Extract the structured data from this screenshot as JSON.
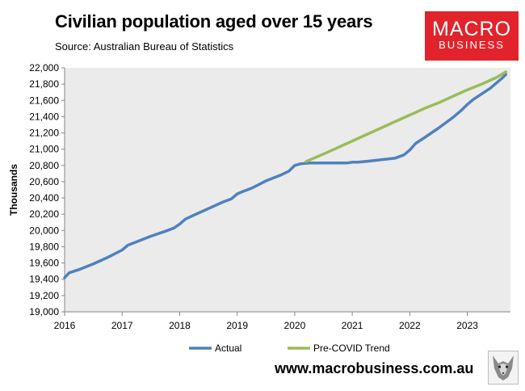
{
  "header": {
    "title": "Civilian population aged over 15 years",
    "source": "Source: Australian Bureau of Statistics"
  },
  "brand": {
    "logo_line1": "MACRO",
    "logo_line2": "BUSINESS",
    "website": "www.macrobusiness.com.au",
    "color": "#e3232b"
  },
  "chart_data": {
    "type": "line",
    "title": "Civilian population aged over 15 years",
    "xlabel": "",
    "ylabel": "Thousands",
    "ylim": [
      19000,
      22000
    ],
    "xlim": [
      2016.0,
      2023.75
    ],
    "y_ticks": [
      19000,
      19200,
      19400,
      19600,
      19800,
      20000,
      20200,
      20400,
      20600,
      20800,
      21000,
      21200,
      21400,
      21600,
      21800,
      22000
    ],
    "y_tick_labels": [
      "19,000",
      "19,200",
      "19,400",
      "19,600",
      "19,800",
      "20,000",
      "20,200",
      "20,400",
      "20,600",
      "20,800",
      "21,000",
      "21,200",
      "21,400",
      "21,600",
      "21,800",
      "22,000"
    ],
    "x_ticks": [
      2016,
      2017,
      2018,
      2019,
      2020,
      2021,
      2022,
      2023
    ],
    "x_tick_labels": [
      "2016",
      "2017",
      "2018",
      "2019",
      "2020",
      "2021",
      "2022",
      "2023"
    ],
    "grid": false,
    "legend_position": "bottom",
    "series": [
      {
        "name": "Actual",
        "color": "#4f81bd",
        "x": [
          2016.0,
          2016.08,
          2016.25,
          2016.5,
          2016.75,
          2017.0,
          2017.1,
          2017.25,
          2017.5,
          2017.75,
          2017.9,
          2018.0,
          2018.1,
          2018.25,
          2018.5,
          2018.75,
          2018.9,
          2019.0,
          2019.1,
          2019.25,
          2019.5,
          2019.75,
          2019.9,
          2020.0,
          2020.1,
          2020.25,
          2020.5,
          2020.75,
          2020.9,
          2021.0,
          2021.1,
          2021.25,
          2021.5,
          2021.75,
          2021.9,
          2022.0,
          2022.1,
          2022.25,
          2022.5,
          2022.75,
          2022.9,
          2023.0,
          2023.1,
          2023.25,
          2023.4,
          2023.5,
          2023.6,
          2023.67
        ],
        "values": [
          19420,
          19480,
          19520,
          19590,
          19670,
          19760,
          19820,
          19860,
          19930,
          19990,
          20030,
          20080,
          20140,
          20190,
          20270,
          20350,
          20390,
          20450,
          20480,
          20520,
          20610,
          20680,
          20730,
          20800,
          20820,
          20830,
          20830,
          20830,
          20830,
          20840,
          20840,
          20850,
          20870,
          20890,
          20930,
          20990,
          21070,
          21140,
          21260,
          21390,
          21480,
          21550,
          21610,
          21680,
          21750,
          21810,
          21870,
          21920
        ]
      },
      {
        "name": "Pre-COVID Trend",
        "color": "#9bbb59",
        "x": [
          2020.2,
          2020.5,
          2020.75,
          2021.0,
          2021.25,
          2021.5,
          2021.75,
          2022.0,
          2022.25,
          2022.5,
          2022.75,
          2023.0,
          2023.25,
          2023.5,
          2023.67
        ],
        "values": [
          20850,
          20940,
          21020,
          21100,
          21180,
          21260,
          21340,
          21420,
          21500,
          21570,
          21650,
          21730,
          21800,
          21880,
          21950
        ]
      }
    ]
  }
}
